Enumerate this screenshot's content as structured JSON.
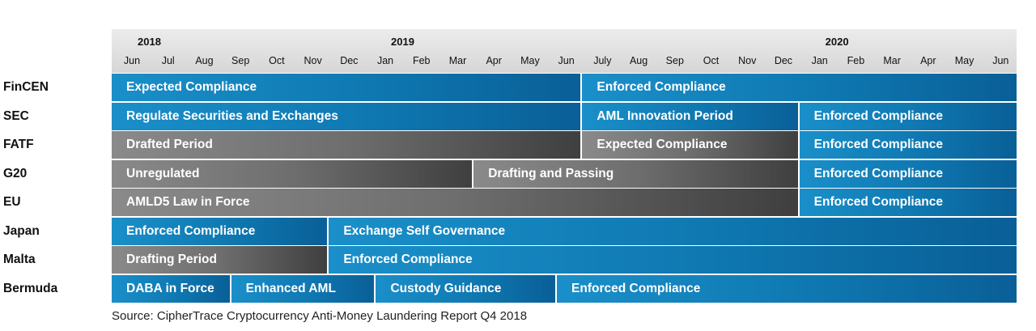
{
  "chart_data": {
    "type": "table",
    "title": "",
    "source": "Source: CipherTrace Cryptocurrency Anti-Money Laundering Report Q4 2018",
    "years": [
      {
        "label": "2018",
        "start_month_index": 0
      },
      {
        "label": "2019",
        "start_month_index": 7
      },
      {
        "label": "2020",
        "start_month_index": 19
      }
    ],
    "months": [
      "Jun",
      "Jul",
      "Aug",
      "Sep",
      "Oct",
      "Nov",
      "Dec",
      "Jan",
      "Feb",
      "Mar",
      "Apr",
      "May",
      "Jun",
      "July",
      "Aug",
      "Sep",
      "Oct",
      "Nov",
      "Dec",
      "Jan",
      "Feb",
      "Mar",
      "Apr",
      "May",
      "Jun"
    ],
    "rows": [
      {
        "label": "FinCEN",
        "segments": [
          {
            "label": "Expected Compliance",
            "start": 0,
            "end": 13,
            "style": "blue"
          },
          {
            "label": "Enforced Compliance",
            "start": 13,
            "end": 25,
            "style": "blue"
          }
        ]
      },
      {
        "label": "SEC",
        "segments": [
          {
            "label": "Regulate Securities and Exchanges",
            "start": 0,
            "end": 13,
            "style": "blue"
          },
          {
            "label": "AML Innovation Period",
            "start": 13,
            "end": 19,
            "style": "blue"
          },
          {
            "label": "Enforced Compliance",
            "start": 19,
            "end": 25,
            "style": "blue"
          }
        ]
      },
      {
        "label": "FATF",
        "segments": [
          {
            "label": "Drafted Period",
            "start": 0,
            "end": 13,
            "style": "gray"
          },
          {
            "label": "Expected Compliance",
            "start": 13,
            "end": 19,
            "style": "gray"
          },
          {
            "label": "Enforced Compliance",
            "start": 19,
            "end": 25,
            "style": "blue"
          }
        ]
      },
      {
        "label": "G20",
        "segments": [
          {
            "label": "Unregulated",
            "start": 0,
            "end": 10,
            "style": "gray"
          },
          {
            "label": "Drafting and Passing",
            "start": 10,
            "end": 19,
            "style": "gray"
          },
          {
            "label": "Enforced Compliance",
            "start": 19,
            "end": 25,
            "style": "blue"
          }
        ]
      },
      {
        "label": "EU",
        "segments": [
          {
            "label": "AMLD5 Law in Force",
            "start": 0,
            "end": 19,
            "style": "gray"
          },
          {
            "label": "Enforced Compliance",
            "start": 19,
            "end": 25,
            "style": "blue"
          }
        ]
      },
      {
        "label": "Japan",
        "segments": [
          {
            "label": "Enforced Compliance",
            "start": 0,
            "end": 6,
            "style": "blue"
          },
          {
            "label": "Exchange Self Governance",
            "start": 6,
            "end": 25,
            "style": "blue"
          }
        ]
      },
      {
        "label": "Malta",
        "segments": [
          {
            "label": "Drafting Period",
            "start": 0,
            "end": 6,
            "style": "gray"
          },
          {
            "label": "Enforced Compliance",
            "start": 6,
            "end": 25,
            "style": "blue"
          }
        ]
      },
      {
        "label": "Bermuda",
        "segments": [
          {
            "label": "DABA in Force",
            "start": 0,
            "end": 3.3,
            "style": "blue"
          },
          {
            "label": "Enhanced AML",
            "start": 3.3,
            "end": 7.3,
            "style": "blue"
          },
          {
            "label": "Custody Guidance",
            "start": 7.3,
            "end": 12.3,
            "style": "blue"
          },
          {
            "label": "Enforced Compliance",
            "start": 12.3,
            "end": 25,
            "style": "blue"
          }
        ]
      }
    ],
    "colors": {
      "blue": "#0f78b1",
      "gray": "#6e6e6e"
    }
  }
}
